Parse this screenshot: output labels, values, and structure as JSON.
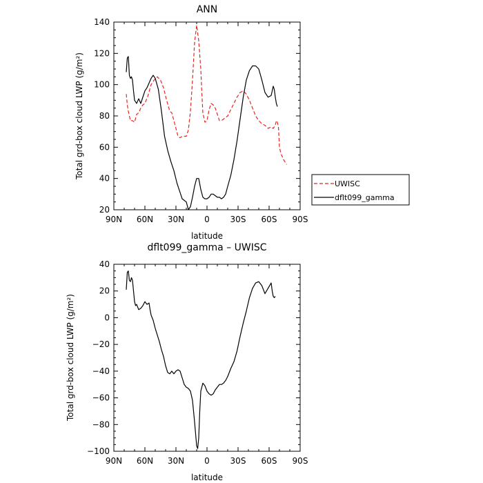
{
  "chart_data": [
    {
      "type": "line",
      "title": "ANN",
      "xlabel": "latitude",
      "ylabel": "Total grd-box cloud LWP (g/m²)",
      "x_reversed": true,
      "xlim": [
        90,
        -90
      ],
      "ylim": [
        20,
        140
      ],
      "x_ticks": [
        {
          "value": 90,
          "label": "90N"
        },
        {
          "value": 60,
          "label": "60N"
        },
        {
          "value": 30,
          "label": "30N"
        },
        {
          "value": 0,
          "label": "0"
        },
        {
          "value": -30,
          "label": "30S"
        },
        {
          "value": -60,
          "label": "60S"
        },
        {
          "value": -90,
          "label": "90S"
        }
      ],
      "y_ticks": [
        {
          "value": 20,
          "label": "20"
        },
        {
          "value": 40,
          "label": "40"
        },
        {
          "value": 60,
          "label": "60"
        },
        {
          "value": 80,
          "label": "80"
        },
        {
          "value": 100,
          "label": "100"
        },
        {
          "value": 120,
          "label": "120"
        },
        {
          "value": 140,
          "label": "140"
        }
      ],
      "legend_position": "right, outside plot",
      "series": [
        {
          "name": "UWISC",
          "color": "#e8231b",
          "dash": "dashed",
          "x": [
            78,
            77,
            76,
            75,
            74,
            72,
            70,
            68,
            66,
            64,
            62,
            60,
            57,
            54,
            51,
            48,
            45,
            42,
            39,
            36,
            34,
            32,
            30,
            28,
            26,
            24,
            22,
            20,
            18,
            16,
            14,
            12,
            10,
            8,
            6,
            5,
            4,
            2,
            0,
            -2,
            -4,
            -6,
            -8,
            -10,
            -12,
            -14,
            -16,
            -18,
            -20,
            -23,
            -26,
            -29,
            -32,
            -35,
            -38,
            -41,
            -44,
            -47,
            -50,
            -53,
            -56,
            -59,
            -62,
            -64,
            -66,
            -67,
            -68,
            -69,
            -70,
            -71,
            -72,
            -74,
            -77
          ],
          "y": [
            94,
            87,
            83,
            80,
            77,
            77,
            76,
            81,
            82,
            85,
            87,
            88,
            93,
            100,
            103,
            105,
            103,
            98,
            90,
            83,
            82,
            77,
            72,
            67,
            66,
            67,
            67,
            67,
            71,
            83,
            103,
            127,
            138,
            128,
            110,
            95,
            82,
            76,
            77,
            84,
            88,
            87,
            85,
            81,
            77,
            77,
            78,
            79,
            80,
            84,
            88,
            92,
            95,
            96,
            94,
            90,
            85,
            80,
            77,
            75,
            74,
            72,
            73,
            72,
            74,
            77,
            76,
            73,
            60,
            57,
            55,
            52,
            49
          ]
        },
        {
          "name": "dflt099_gamma",
          "color": "#000000",
          "dash": "solid",
          "x": [
            78,
            77,
            76,
            75,
            74,
            73,
            72,
            71,
            70,
            68,
            66,
            64,
            62,
            60,
            58,
            56,
            54,
            52,
            50,
            47,
            44,
            41,
            38,
            35,
            32,
            29,
            26,
            24,
            22,
            20,
            18,
            16,
            14,
            12,
            10,
            8,
            6,
            4,
            2,
            0,
            -2,
            -4,
            -6,
            -8,
            -10,
            -12,
            -14,
            -16,
            -18,
            -20,
            -23,
            -26,
            -29,
            -32,
            -35,
            -38,
            -41,
            -44,
            -47,
            -50,
            -53,
            -56,
            -59,
            -62,
            -64,
            -65,
            -66,
            -67,
            -68
          ],
          "y": [
            108,
            117,
            118,
            106,
            104,
            105,
            103,
            96,
            90,
            88,
            91,
            88,
            92,
            96,
            98,
            101,
            104,
            106,
            104,
            97,
            83,
            67,
            58,
            51,
            45,
            37,
            31,
            27,
            26,
            25,
            20,
            22,
            28,
            35,
            40,
            40,
            33,
            28,
            27,
            27,
            28,
            30,
            30,
            29,
            28,
            28,
            27,
            28,
            30,
            35,
            42,
            52,
            64,
            78,
            92,
            103,
            109,
            112,
            112,
            110,
            103,
            95,
            92,
            93,
            99,
            97,
            92,
            88,
            86
          ]
        }
      ]
    },
    {
      "type": "line",
      "title": "dflt099_gamma – UWISC",
      "xlabel": "latitude",
      "ylabel": "Total grd-box cloud LWP (g/m²)",
      "x_reversed": true,
      "xlim": [
        90,
        -90
      ],
      "ylim": [
        -100,
        40
      ],
      "x_ticks": [
        {
          "value": 90,
          "label": "90N"
        },
        {
          "value": 60,
          "label": "60N"
        },
        {
          "value": 30,
          "label": "30N"
        },
        {
          "value": 0,
          "label": "0"
        },
        {
          "value": -30,
          "label": "30S"
        },
        {
          "value": -60,
          "label": "60S"
        },
        {
          "value": -90,
          "label": "90S"
        }
      ],
      "y_ticks": [
        {
          "value": -100,
          "label": "−100"
        },
        {
          "value": -80,
          "label": "−80"
        },
        {
          "value": -60,
          "label": "−60"
        },
        {
          "value": -40,
          "label": "−40"
        },
        {
          "value": -20,
          "label": "−20"
        },
        {
          "value": 0,
          "label": "0"
        },
        {
          "value": 20,
          "label": "20"
        },
        {
          "value": 40,
          "label": "40"
        }
      ],
      "series": [
        {
          "color": "#000000",
          "dash": "solid",
          "x": [
            78,
            77,
            76,
            75,
            74,
            73,
            72,
            71,
            70,
            69,
            68,
            66,
            64,
            62,
            60,
            58,
            56,
            55,
            54,
            52,
            50,
            48,
            46,
            44,
            42,
            40,
            38,
            36,
            34,
            32,
            30,
            28,
            26,
            24,
            22,
            20,
            18,
            16,
            14,
            12,
            10,
            9,
            8,
            7,
            6,
            4,
            2,
            0,
            -2,
            -4,
            -6,
            -8,
            -10,
            -12,
            -14,
            -16,
            -18,
            -20,
            -23,
            -26,
            -29,
            -32,
            -35,
            -38,
            -41,
            -44,
            -47,
            -50,
            -53,
            -56,
            -59,
            -62,
            -63,
            -64,
            -65,
            -66
          ],
          "y": [
            21,
            34,
            35,
            28,
            27,
            30,
            28,
            20,
            12,
            9,
            10,
            6,
            7,
            9,
            12,
            10,
            11,
            6,
            2,
            -2,
            -8,
            -13,
            -18,
            -24,
            -29,
            -36,
            -41,
            -42,
            -40,
            -42,
            -40,
            -39,
            -40,
            -45,
            -50,
            -52,
            -53,
            -55,
            -62,
            -78,
            -96,
            -98,
            -90,
            -70,
            -55,
            -49,
            -51,
            -55,
            -57,
            -58,
            -57,
            -54,
            -52,
            -50,
            -50,
            -49,
            -47,
            -44,
            -38,
            -33,
            -25,
            -14,
            -4,
            5,
            15,
            22,
            26,
            27,
            24,
            18,
            22,
            26,
            20,
            16,
            15,
            16
          ]
        }
      ]
    }
  ]
}
